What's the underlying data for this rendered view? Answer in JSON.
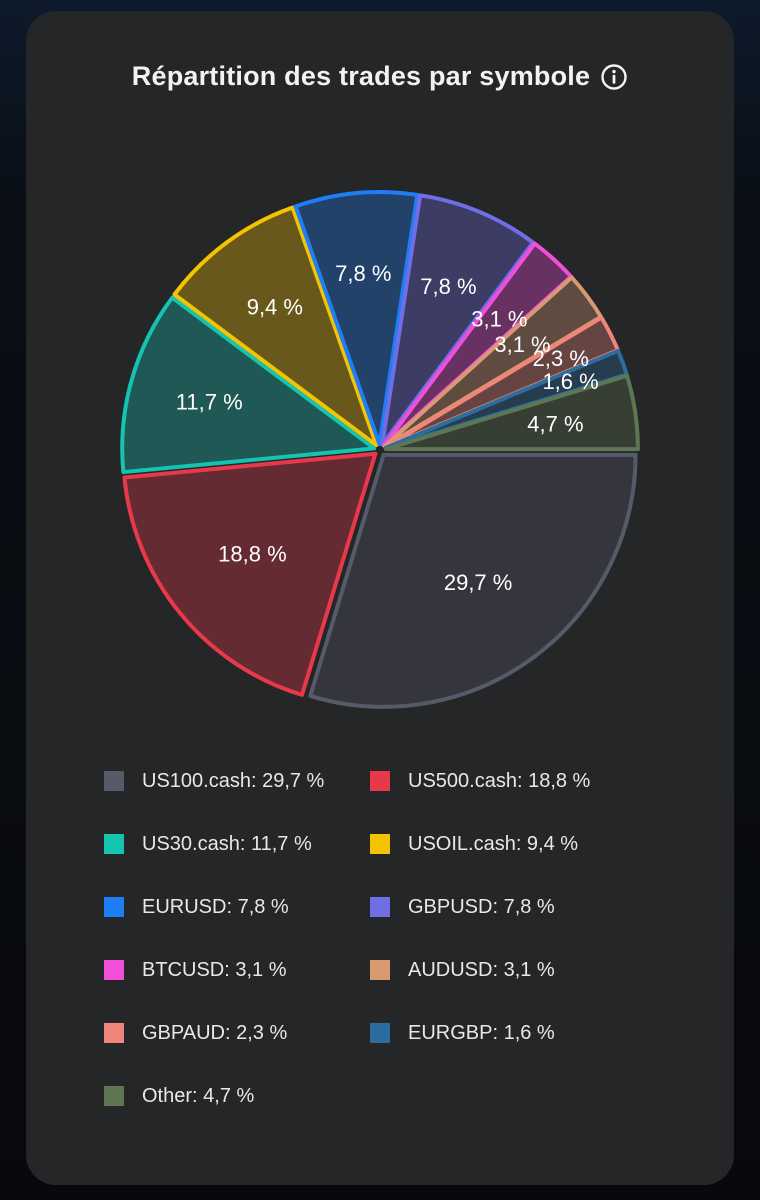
{
  "card": {
    "title": "Répartition des trades par symbole",
    "info_icon": "info-icon"
  },
  "chart_data": {
    "type": "pie",
    "title": "Répartition des trades par symbole",
    "legend_position": "bottom",
    "slices": [
      {
        "name": "US100.cash",
        "value": 29.7,
        "label": "29,7 %",
        "legend": "US100.cash: 29,7 %",
        "color": "#575b69"
      },
      {
        "name": "US500.cash",
        "value": 18.8,
        "label": "18,8 %",
        "legend": "US500.cash: 18,8 %",
        "color": "#e8394a"
      },
      {
        "name": "US30.cash",
        "value": 11.7,
        "label": "11,7 %",
        "legend": "US30.cash: 11,7 %",
        "color": "#14c4b0"
      },
      {
        "name": "USOIL.cash",
        "value": 9.4,
        "label": "9,4 %",
        "legend": "USOIL.cash: 9,4 %",
        "color": "#f5c400"
      },
      {
        "name": "EURUSD",
        "value": 7.8,
        "label": "7,8 %",
        "legend": "EURUSD: 7,8 %",
        "color": "#1f7ef5"
      },
      {
        "name": "GBPUSD",
        "value": 7.8,
        "label": "7,8 %",
        "legend": "GBPUSD: 7,8 %",
        "color": "#6f6ee6"
      },
      {
        "name": "BTCUSD",
        "value": 3.1,
        "label": "3,1 %",
        "legend": "BTCUSD: 3,1 %",
        "color": "#f24fd9"
      },
      {
        "name": "AUDUSD",
        "value": 3.1,
        "label": "3,1 %",
        "legend": "AUDUSD: 3,1 %",
        "color": "#d99a72"
      },
      {
        "name": "GBPAUD",
        "value": 2.3,
        "label": "2,3 %",
        "legend": "GBPAUD: 2,3 %",
        "color": "#f0857a"
      },
      {
        "name": "EURGBP",
        "value": 1.6,
        "label": "1,6 %",
        "legend": "EURGBP: 1,6 %",
        "color": "#2a6d9e"
      },
      {
        "name": "Other",
        "value": 4.7,
        "label": "4,7 %",
        "legend": "Other: 4,7 %",
        "color": "#5e7752"
      }
    ]
  }
}
